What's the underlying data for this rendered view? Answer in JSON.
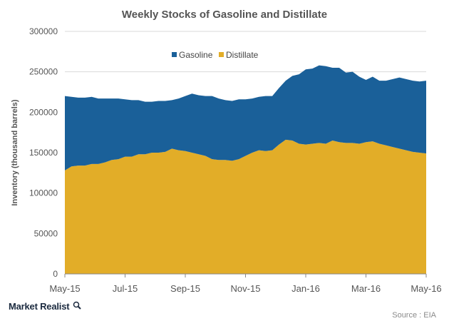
{
  "chart_data": {
    "type": "area",
    "stacked": true,
    "title": "Weekly Stocks of Gasoline and Distillate",
    "xlabel": "",
    "ylabel": "Inventory (thousand barrels)",
    "ylim": [
      0,
      300000
    ],
    "yticks": [
      "0",
      "50000",
      "100000",
      "150000",
      "200000",
      "250000",
      "300000"
    ],
    "xticks": [
      "May-15",
      "Jul-15",
      "Sep-15",
      "Nov-15",
      "Jan-16",
      "Mar-16",
      "May-16"
    ],
    "grid": true,
    "legend_position": "top-center",
    "x": [
      "2015-05-01",
      "2015-05-08",
      "2015-05-15",
      "2015-05-22",
      "2015-05-29",
      "2015-06-05",
      "2015-06-12",
      "2015-06-19",
      "2015-06-26",
      "2015-07-03",
      "2015-07-10",
      "2015-07-17",
      "2015-07-24",
      "2015-07-31",
      "2015-08-07",
      "2015-08-14",
      "2015-08-21",
      "2015-08-28",
      "2015-09-04",
      "2015-09-11",
      "2015-09-18",
      "2015-09-25",
      "2015-10-02",
      "2015-10-09",
      "2015-10-16",
      "2015-10-23",
      "2015-10-30",
      "2015-11-06",
      "2015-11-13",
      "2015-11-20",
      "2015-11-27",
      "2015-12-04",
      "2015-12-11",
      "2015-12-18",
      "2015-12-25",
      "2016-01-01",
      "2016-01-08",
      "2016-01-15",
      "2016-01-22",
      "2016-01-29",
      "2016-02-05",
      "2016-02-12",
      "2016-02-19",
      "2016-02-26",
      "2016-03-04",
      "2016-03-11",
      "2016-03-18",
      "2016-03-25",
      "2016-04-01",
      "2016-04-08",
      "2016-04-15",
      "2016-04-22",
      "2016-04-29",
      "2016-05-06",
      "2016-05-13"
    ],
    "series": [
      {
        "name": "Distillate",
        "color": "#e2ad28",
        "values": [
          128000,
          133000,
          134000,
          134000,
          136000,
          136000,
          138000,
          141000,
          142000,
          145000,
          145000,
          148000,
          148000,
          150000,
          150000,
          151000,
          155000,
          153000,
          152000,
          150000,
          148000,
          146000,
          142000,
          141000,
          141000,
          140000,
          142000,
          146000,
          150000,
          153000,
          152000,
          153000,
          160000,
          166000,
          165000,
          161000,
          160000,
          161000,
          162000,
          161000,
          165000,
          163000,
          162000,
          162000,
          161000,
          163000,
          164000,
          161000,
          159000,
          157000,
          155000,
          153000,
          151000,
          150000,
          149000
        ]
      },
      {
        "name": "Gasoline",
        "color": "#1a6099",
        "values": [
          92000,
          86000,
          84000,
          84000,
          83000,
          81000,
          79000,
          76000,
          75000,
          71000,
          70000,
          67000,
          65000,
          63000,
          64000,
          63000,
          60000,
          64000,
          68000,
          73000,
          73000,
          74000,
          78000,
          76000,
          74000,
          74000,
          74000,
          70000,
          67000,
          66000,
          68000,
          67000,
          70000,
          73000,
          80000,
          86000,
          93000,
          93000,
          96000,
          96000,
          90000,
          92000,
          87000,
          88000,
          83000,
          77000,
          80000,
          78000,
          80000,
          84000,
          88000,
          88000,
          88000,
          88000,
          90000
        ]
      }
    ]
  },
  "footer": {
    "brand": "Market Realist",
    "source": "Source : EIA"
  }
}
